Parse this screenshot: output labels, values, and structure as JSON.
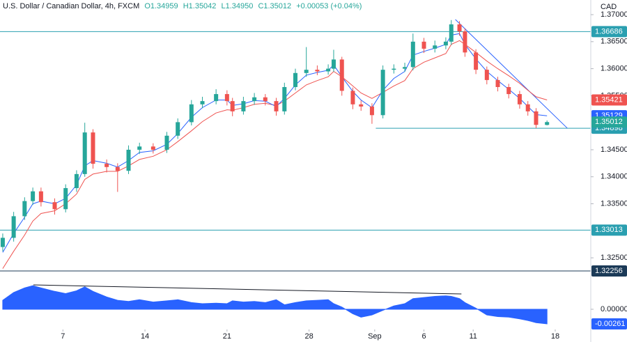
{
  "chart_data": {
    "type": "candlestick",
    "title": "U.S. Dollar / Canadian Dollar, 4h, FXCM",
    "ohlc_legend": [
      "O1.34959",
      "H1.35042",
      "L1.34950",
      "C1.35012",
      "+0.00053 (+0.04%)"
    ],
    "currency": "CAD",
    "x": [
      1,
      5,
      9,
      12,
      15,
      20,
      24,
      28,
      31,
      34,
      39,
      43,
      47,
      51,
      56,
      61,
      65,
      70,
      74,
      79,
      83,
      85,
      89,
      93,
      97,
      101,
      104,
      108,
      112,
      116,
      120,
      122,
      125,
      129,
      132,
      136,
      140,
      144,
      148,
      151,
      155,
      159,
      163,
      165,
      168,
      170,
      174,
      178,
      182,
      186,
      190,
      193,
      196,
      200
    ],
    "xlim": [
      0,
      216
    ],
    "xticks": [
      {
        "value": 23,
        "label": "7"
      },
      {
        "value": 53,
        "label": "14"
      },
      {
        "value": 83,
        "label": "21"
      },
      {
        "value": 113,
        "label": "28"
      },
      {
        "value": 137,
        "label": "Sep"
      },
      {
        "value": 155,
        "label": "6"
      },
      {
        "value": 173,
        "label": "11"
      },
      {
        "value": 203,
        "label": "18"
      }
    ],
    "open": [
      1.327,
      1.3287,
      1.3327,
      1.3355,
      1.3373,
      1.3353,
      1.334,
      1.3379,
      1.3405,
      1.3482,
      1.3424,
      1.3418,
      1.3411,
      1.345,
      1.3456,
      1.345,
      1.3476,
      1.3501,
      1.3534,
      1.354,
      1.3553,
      1.354,
      1.3521,
      1.354,
      1.3547,
      1.354,
      1.3521,
      1.3566,
      1.3592,
      1.3598,
      1.3595,
      1.36,
      1.3617,
      1.3559,
      1.3534,
      1.353,
      1.3514,
      1.3598,
      1.36,
      1.3603,
      1.365,
      1.3637,
      1.3643,
      1.365,
      1.3682,
      1.3669,
      1.363,
      1.3598,
      1.3579,
      1.3566,
      1.3553,
      1.3534,
      1.3521,
      1.34959
    ],
    "high": [
      1.3295,
      1.3335,
      1.3362,
      1.338,
      1.338,
      1.336,
      1.3386,
      1.3412,
      1.35,
      1.3488,
      1.3432,
      1.3425,
      1.3458,
      1.3463,
      1.3462,
      1.3483,
      1.3508,
      1.3542,
      1.3548,
      1.3562,
      1.356,
      1.3546,
      1.3548,
      1.3555,
      1.3553,
      1.3546,
      1.3574,
      1.36,
      1.364,
      1.3606,
      1.3608,
      1.3635,
      1.3622,
      1.3565,
      1.3541,
      1.3536,
      1.3606,
      1.3608,
      1.3611,
      1.3665,
      1.3657,
      1.3652,
      1.3658,
      1.369,
      1.3688,
      1.3675,
      1.3636,
      1.3604,
      1.3585,
      1.3572,
      1.3559,
      1.354,
      1.3527,
      1.35042
    ],
    "low": [
      1.3262,
      1.328,
      1.332,
      1.3348,
      1.3345,
      1.333,
      1.3334,
      1.3372,
      1.34,
      1.3415,
      1.3408,
      1.3372,
      1.3405,
      1.3442,
      1.3443,
      1.3444,
      1.347,
      1.3495,
      1.3527,
      1.3534,
      1.3532,
      1.3512,
      1.3515,
      1.3533,
      1.3532,
      1.3513,
      1.3515,
      1.356,
      1.3585,
      1.3588,
      1.3589,
      1.3594,
      1.355,
      1.3525,
      1.3522,
      1.3498,
      1.3508,
      1.3591,
      1.3594,
      1.3597,
      1.3629,
      1.363,
      1.3636,
      1.3644,
      1.3661,
      1.3622,
      1.359,
      1.3571,
      1.3558,
      1.3545,
      1.3526,
      1.3513,
      1.349,
      1.3495
    ],
    "close": [
      1.3287,
      1.3327,
      1.3355,
      1.3373,
      1.3353,
      1.334,
      1.3379,
      1.3405,
      1.3482,
      1.3424,
      1.3418,
      1.3411,
      1.345,
      1.3456,
      1.345,
      1.3476,
      1.3501,
      1.3534,
      1.354,
      1.3553,
      1.354,
      1.3521,
      1.354,
      1.3547,
      1.354,
      1.3521,
      1.3566,
      1.3592,
      1.3598,
      1.3595,
      1.36,
      1.3617,
      1.3559,
      1.3534,
      1.353,
      1.3514,
      1.3598,
      1.36,
      1.3603,
      1.365,
      1.3637,
      1.3643,
      1.365,
      1.3682,
      1.3669,
      1.363,
      1.3598,
      1.3579,
      1.3566,
      1.3553,
      1.3534,
      1.3521,
      1.3496,
      1.35012
    ],
    "up_color": "#26a69a",
    "down_color": "#ef5350",
    "ylim": [
      1.32115,
      1.37271
    ],
    "yticks": [
      {
        "value": 1.37,
        "label": "1.37000"
      },
      {
        "value": 1.365,
        "label": "1.36500"
      },
      {
        "value": 1.36,
        "label": "1.36000"
      },
      {
        "value": 1.355,
        "label": "1.35500"
      },
      {
        "value": 1.345,
        "label": "1.34500"
      },
      {
        "value": 1.34,
        "label": "1.34000"
      },
      {
        "value": 1.335,
        "label": "1.33500"
      },
      {
        "value": 1.325,
        "label": "1.32500"
      }
    ],
    "series": [
      {
        "color": "#ef5350",
        "values": [
          1.323,
          1.3262,
          1.3292,
          1.3318,
          1.3332,
          1.3337,
          1.335,
          1.3368,
          1.3395,
          1.3405,
          1.341,
          1.341,
          1.342,
          1.3432,
          1.3438,
          1.345,
          1.3465,
          1.3485,
          1.3502,
          1.3518,
          1.3524,
          1.3523,
          1.3528,
          1.3534,
          1.3536,
          1.3532,
          1.354,
          1.3555,
          1.357,
          1.3578,
          1.3585,
          1.3595,
          1.3585,
          1.3568,
          1.3555,
          1.3545,
          1.3556,
          1.3568,
          1.3578,
          1.36,
          1.3612,
          1.362,
          1.3628,
          1.3645,
          1.3652,
          1.3645,
          1.363,
          1.3614,
          1.36,
          1.3587,
          1.3573,
          1.356,
          1.3548,
          1.35421
        ]
      },
      {
        "color": "#2962ff",
        "values": [
          1.326,
          1.3295,
          1.3325,
          1.335,
          1.3355,
          1.335,
          1.336,
          1.3385,
          1.342,
          1.343,
          1.3425,
          1.3418,
          1.343,
          1.3445,
          1.3448,
          1.346,
          1.348,
          1.351,
          1.3528,
          1.3542,
          1.3542,
          1.3532,
          1.3535,
          1.3541,
          1.354,
          1.353,
          1.3545,
          1.357,
          1.3588,
          1.3593,
          1.3597,
          1.3607,
          1.3585,
          1.3558,
          1.3542,
          1.3528,
          1.356,
          1.3582,
          1.3595,
          1.3625,
          1.3632,
          1.3638,
          1.3645,
          1.3662,
          1.3665,
          1.3645,
          1.3618,
          1.3595,
          1.3578,
          1.3562,
          1.3545,
          1.353,
          1.3515,
          1.35129
        ]
      }
    ],
    "levels": [
      {
        "value": 1.36686,
        "color": "#2a9fb0"
      },
      {
        "value": 1.34898,
        "color": "#2a9fb0",
        "x_start": 137.4
      },
      {
        "value": 1.33013,
        "color": "#2a9fb0"
      },
      {
        "value": 1.32256,
        "color": "#1b3a57"
      }
    ],
    "trendlines": [
      {
        "x": [
          166.5,
          207.4
        ],
        "y": [
          1.3691,
          1.349
        ],
        "color": "#2962ff"
      }
    ],
    "oscillator": {
      "color": "#2962ff",
      "values": [
        0.0016,
        0.003,
        0.0038,
        0.0042,
        0.0038,
        0.0032,
        0.0028,
        0.0033,
        0.004,
        0.0032,
        0.0022,
        0.0016,
        0.0014,
        0.0017,
        0.0013,
        0.0015,
        0.0017,
        0.0012,
        0.001,
        0.0011,
        0.001,
        0.0015,
        0.0013,
        0.0014,
        0.0012,
        0.0017,
        0.0008,
        0.0012,
        0.0015,
        0.0016,
        0.0017,
        0.001,
        0.0004,
        -0.0008,
        -0.0014,
        -0.001,
        -0.0002,
        0.0006,
        0.001,
        0.0019,
        0.0021,
        0.0023,
        0.0024,
        0.0023,
        0.0019,
        0.0012,
        0.0002,
        -0.001,
        -0.0013,
        -0.0014,
        -0.0017,
        -0.002,
        -0.0024,
        -0.00261
      ],
      "ylim": [
        -0.00323,
        0.00547
      ],
      "yticks": [
        {
          "value": 0,
          "label": "0.00000"
        }
      ],
      "trendline": {
        "x": [
          12.2,
          168.7
        ],
        "y": [
          0.00435,
          0.00273
        ]
      }
    }
  }
}
